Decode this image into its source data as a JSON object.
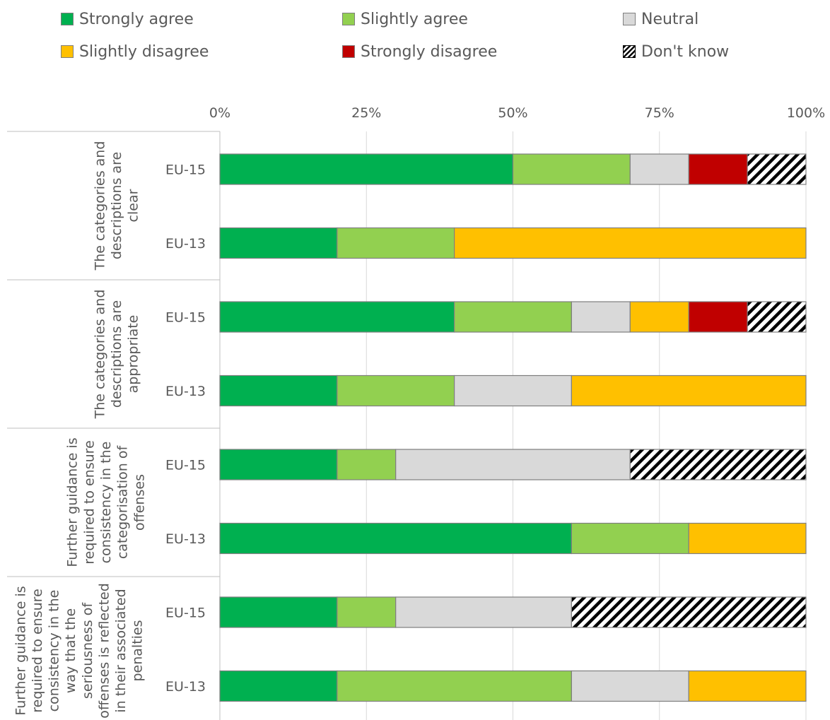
{
  "legend": [
    {
      "label": "Strongly agree",
      "color": "#00B050"
    },
    {
      "label": "Slightly agree",
      "color": "#92D050"
    },
    {
      "label": "Neutral",
      "color": "#D9D9D9"
    },
    {
      "label": "Slightly disagree",
      "color": "#FFC000"
    },
    {
      "label": "Strongly disagree",
      "color": "#C00000"
    },
    {
      "label": "Don't know",
      "color": "hatched"
    }
  ],
  "chart_data": {
    "type": "bar",
    "orientation": "horizontal",
    "stacked": "percent",
    "xlim": [
      0,
      100
    ],
    "x_ticks": [
      "0%",
      "25%",
      "50%",
      "75%",
      "100%"
    ],
    "legend_position": "top",
    "grid": true,
    "series_names": [
      "Strongly agree",
      "Slightly agree",
      "Neutral",
      "Slightly disagree",
      "Strongly disagree",
      "Don't know"
    ],
    "groups": [
      {
        "label_lines": [
          "The categories and",
          "descriptions are",
          "clear"
        ],
        "rows": [
          {
            "label": "EU-15",
            "values": [
              50,
              20,
              10,
              0,
              10,
              10
            ]
          },
          {
            "label": "EU-13",
            "values": [
              20,
              20,
              0,
              60,
              0,
              0
            ]
          }
        ]
      },
      {
        "label_lines": [
          "The categories and",
          "descriptions are",
          "appropriate"
        ],
        "rows": [
          {
            "label": "EU-15",
            "values": [
              40,
              20,
              10,
              10,
              10,
              10
            ]
          },
          {
            "label": "EU-13",
            "values": [
              20,
              20,
              20,
              40,
              0,
              0
            ]
          }
        ]
      },
      {
        "label_lines": [
          "Further guidance is",
          "required to ensure",
          "consistency in the",
          "categorisation of",
          "offenses"
        ],
        "rows": [
          {
            "label": "EU-15",
            "values": [
              20,
              10,
              40,
              0,
              0,
              30
            ]
          },
          {
            "label": "EU-13",
            "values": [
              60,
              20,
              0,
              20,
              0,
              0
            ]
          }
        ]
      },
      {
        "label_lines": [
          "Further guidance is",
          "required to ensure",
          "consistency in the",
          "way that the",
          "seriousness of",
          "offenses is reflected",
          "in their associated",
          "penalties"
        ],
        "rows": [
          {
            "label": "EU-15",
            "values": [
              20,
              10,
              30,
              0,
              0,
              40
            ]
          },
          {
            "label": "EU-13",
            "values": [
              20,
              40,
              20,
              20,
              0,
              0
            ]
          }
        ]
      }
    ]
  }
}
